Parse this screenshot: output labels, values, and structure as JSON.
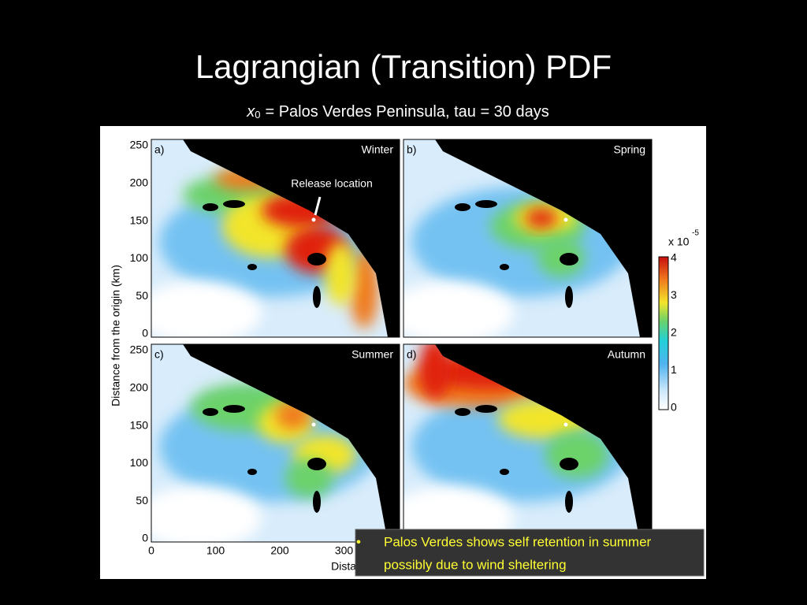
{
  "slide": {
    "title": "Lagrangian (Transition) PDF",
    "subtitle": {
      "variable": "x",
      "subscript": "0",
      "text": "= Palos Verdes Peninsula, tau = 30 days"
    },
    "figure": {
      "y_label": "Distance from the origin (km)",
      "x_label": "Distance from the origin (km)",
      "yticks": [
        "250",
        "200",
        "150",
        "100",
        "50",
        "0"
      ],
      "xticks": [
        "0",
        "100",
        "200",
        "300"
      ],
      "panels": [
        {
          "label": "a)",
          "season": "Winter"
        },
        {
          "label": "b)",
          "season": "Spring"
        },
        {
          "label": "c)",
          "season": "Summer"
        },
        {
          "label": "d)",
          "season": "Autumn"
        }
      ],
      "annotation": "Release location",
      "colorbar": {
        "scale": "x 10",
        "exponent": "-5",
        "ticks": [
          "4",
          "3",
          "2",
          "1",
          "0"
        ]
      }
    },
    "callout": {
      "bullet": "•",
      "lines": [
        "Palos Verdes shows self retention in summer",
        "possibly due to wind sheltering"
      ]
    }
  }
}
